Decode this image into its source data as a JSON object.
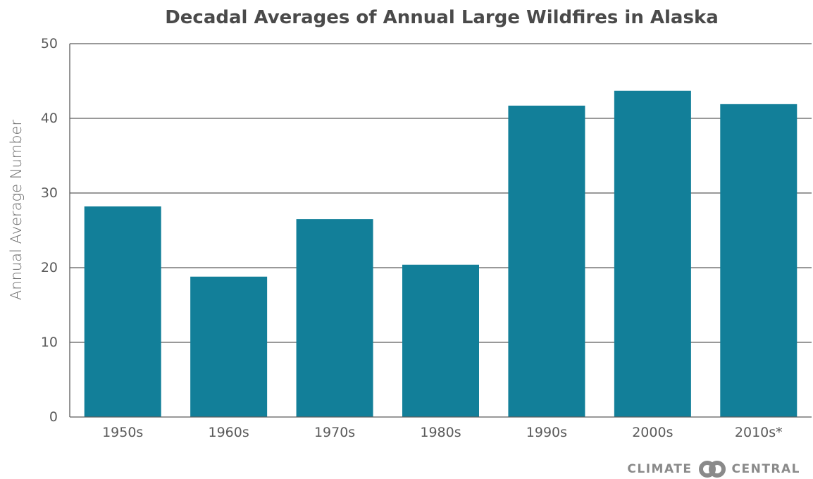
{
  "chart_data": {
    "type": "bar",
    "title": "Decadal Averages of Annual Large Wildfires in Alaska",
    "xlabel": "",
    "ylabel": "Annual Average Number",
    "categories": [
      "1950s",
      "1960s",
      "1970s",
      "1980s",
      "1990s",
      "2000s",
      "2010s*"
    ],
    "values": [
      28.2,
      18.8,
      26.5,
      20.4,
      41.7,
      43.7,
      41.9
    ],
    "ylim": [
      0,
      50
    ],
    "yticks": [
      "0",
      "10",
      "20",
      "30",
      "40",
      "50"
    ],
    "grid": true,
    "bar_color": "#127f99"
  },
  "branding": {
    "left_word": "CLIMATE",
    "right_word": "CENTRAL",
    "logo_icon": "linked-rings-icon",
    "logo_color": "#8a8a8a"
  }
}
